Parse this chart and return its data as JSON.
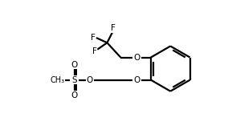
{
  "background_color": "#ffffff",
  "line_color": "#000000",
  "line_width": 1.6,
  "font_size": 7.5,
  "figsize": [
    2.84,
    1.72
  ],
  "dpi": 100,
  "xlim": [
    0,
    10
  ],
  "ylim": [
    0,
    6.07
  ]
}
